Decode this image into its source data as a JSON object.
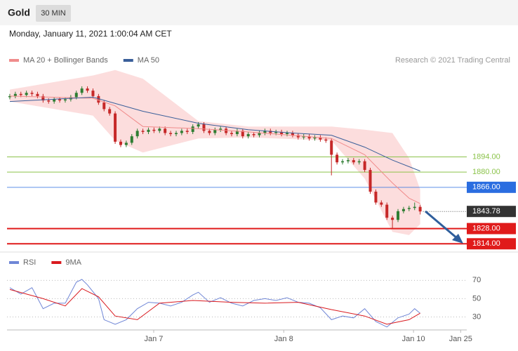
{
  "header": {
    "title": "Gold",
    "interval": "30 MIN",
    "datetime": "Monday, January 11, 2021 1:00:04 AM CET"
  },
  "chart_data": [
    {
      "type": "candlestick",
      "attribution": "Research © 2021 Trading Central",
      "xlim": [
        -0.5,
        82.4
      ],
      "ylim": [
        1809,
        1990
      ],
      "up_color": "#2e7d32",
      "down_color": "#c62828",
      "band_color": "#fbd5d5",
      "open": [
        1949,
        1950,
        1952,
        1951,
        1953,
        1952,
        1950,
        1946,
        1945,
        1947,
        1946,
        1947,
        1949,
        1953,
        1957,
        1955,
        1950,
        1944,
        1938,
        1934,
        1908,
        1905,
        1907,
        1913,
        1918,
        1917,
        1919,
        1918,
        1920,
        1916,
        1915,
        1916,
        1918,
        1917,
        1922,
        1924,
        1918,
        1916,
        1919,
        1920,
        1916,
        1915,
        1918,
        1913,
        1915,
        1914,
        1916,
        1918,
        1916,
        1917,
        1915,
        1916,
        1914,
        1912,
        1913,
        1911,
        1912,
        1910,
        1909,
        1896,
        1889,
        1890,
        1891,
        1889,
        1890,
        1882,
        1862,
        1852,
        1850,
        1838,
        1836,
        1844,
        1846,
        1847,
        1848
      ],
      "high": [
        1952,
        1954,
        1954,
        1955,
        1955,
        1954,
        1952,
        1948,
        1949,
        1949,
        1949,
        1951,
        1955,
        1959,
        1959,
        1957,
        1952,
        1946,
        1940,
        1936,
        1910,
        1909,
        1915,
        1920,
        1920,
        1921,
        1921,
        1922,
        1922,
        1918,
        1918,
        1920,
        1920,
        1924,
        1926,
        1926,
        1920,
        1921,
        1922,
        1922,
        1918,
        1920,
        1920,
        1917,
        1917,
        1918,
        1920,
        1920,
        1919,
        1919,
        1918,
        1918,
        1916,
        1915,
        1915,
        1914,
        1914,
        1912,
        1911,
        1898,
        1892,
        1893,
        1893,
        1892,
        1892,
        1884,
        1864,
        1854,
        1852,
        1840,
        1846,
        1848,
        1849,
        1852,
        1850
      ],
      "low": [
        1947,
        1948,
        1949,
        1949,
        1950,
        1948,
        1944,
        1943,
        1943,
        1944,
        1944,
        1945,
        1947,
        1951,
        1953,
        1948,
        1942,
        1936,
        1932,
        1906,
        1903,
        1903,
        1905,
        1911,
        1915,
        1915,
        1916,
        1916,
        1914,
        1913,
        1913,
        1914,
        1915,
        1915,
        1920,
        1916,
        1914,
        1914,
        1917,
        1914,
        1913,
        1913,
        1911,
        1911,
        1912,
        1912,
        1914,
        1914,
        1914,
        1913,
        1913,
        1912,
        1910,
        1910,
        1909,
        1909,
        1908,
        1907,
        1877,
        1887,
        1887,
        1888,
        1887,
        1887,
        1880,
        1860,
        1850,
        1848,
        1836,
        1828,
        1834,
        1842,
        1844,
        1845,
        1841
      ],
      "close": [
        1950,
        1952,
        1951,
        1953,
        1952,
        1950,
        1946,
        1945,
        1947,
        1946,
        1947,
        1949,
        1953,
        1957,
        1955,
        1950,
        1944,
        1938,
        1934,
        1908,
        1905,
        1907,
        1913,
        1918,
        1917,
        1919,
        1918,
        1920,
        1916,
        1915,
        1916,
        1918,
        1917,
        1922,
        1924,
        1918,
        1916,
        1919,
        1920,
        1916,
        1915,
        1918,
        1913,
        1915,
        1914,
        1916,
        1918,
        1916,
        1917,
        1915,
        1916,
        1914,
        1912,
        1913,
        1911,
        1912,
        1910,
        1909,
        1896,
        1889,
        1890,
        1891,
        1889,
        1890,
        1882,
        1862,
        1852,
        1850,
        1838,
        1836,
        1844,
        1846,
        1847,
        1848,
        1843.78
      ],
      "last_price": 1843.78,
      "series": [
        {
          "name": "MA 20 + Bollinger Bands",
          "color": "#f08c8c",
          "x": [
            0,
            15,
            19,
            24,
            34,
            43,
            58,
            64,
            69,
            72,
            74
          ],
          "values": [
            1950,
            1948,
            1941,
            1922,
            1920,
            1917,
            1911,
            1896,
            1870,
            1856,
            1851
          ],
          "upper": [
            1956,
            1969,
            1974,
            1966,
            1927,
            1922,
            1922,
            1919,
            1916,
            1893,
            1864
          ],
          "lower": [
            1945,
            1932,
            1909,
            1898,
            1911,
            1912,
            1909,
            1874,
            1825,
            1822,
            1832
          ]
        },
        {
          "name": "MA 50",
          "color": "#3a5f9a",
          "x": [
            0,
            15,
            24,
            34,
            43,
            51,
            58,
            64,
            69,
            74
          ],
          "values": [
            1945,
            1949,
            1936,
            1925,
            1919,
            1916,
            1914,
            1903,
            1891,
            1881
          ]
        }
      ],
      "levels": [
        {
          "value": 1894,
          "label": "1894.00",
          "color": "#8bc34a",
          "label_style": "text"
        },
        {
          "value": 1880,
          "label": "1880.00",
          "color": "#8bc34a",
          "label_style": "text"
        },
        {
          "value": 1866,
          "label": "1866.00",
          "color": "#2a6de0",
          "label_style": "box"
        },
        {
          "value": 1828,
          "label": "1828.00",
          "color": "#e01b1b",
          "label_style": "box"
        },
        {
          "value": 1814,
          "label": "1814.00",
          "color": "#e01b1b",
          "label_style": "box"
        }
      ]
    },
    {
      "type": "line",
      "xlim": [
        -0.5,
        82.4
      ],
      "ylim": [
        15,
        81
      ],
      "yticks": [
        70,
        50,
        30
      ],
      "xticks": [
        {
          "value": 25.95,
          "label": "Jan 7"
        },
        {
          "value": 49.4,
          "label": "Jan 8"
        },
        {
          "value": 72.8,
          "label": "Jan 10"
        },
        {
          "value": 81.3,
          "label": "Jan 25"
        }
      ],
      "series": [
        {
          "name": "RSI",
          "color": "#6f86d6",
          "x": [
            0,
            2,
            4,
            6,
            8,
            10,
            12,
            13,
            14,
            16,
            17,
            19,
            21,
            23,
            25,
            27,
            29,
            31,
            33,
            34,
            36,
            38,
            40,
            42,
            44,
            46,
            48,
            50,
            52,
            54,
            56,
            58,
            60,
            62,
            64,
            66,
            68,
            70,
            72,
            73,
            74
          ],
          "values": [
            62,
            55,
            62,
            39,
            45,
            45,
            68,
            71,
            65,
            50,
            27,
            22,
            27,
            39,
            46,
            45,
            42,
            46,
            54,
            57,
            46,
            51,
            45,
            42,
            48,
            50,
            48,
            51,
            46,
            45,
            40,
            27,
            31,
            29,
            39,
            25,
            19,
            29,
            33,
            39,
            34
          ]
        },
        {
          "name": "9MA",
          "color": "#d9191e",
          "x": [
            0,
            6,
            10,
            13,
            16,
            19,
            23,
            27,
            33,
            40,
            46,
            52,
            58,
            64,
            68,
            72,
            74
          ],
          "values": [
            60,
            50,
            42,
            61,
            52,
            31,
            27,
            45,
            48,
            46,
            45,
            46,
            38,
            31,
            22,
            27,
            34
          ]
        }
      ]
    }
  ]
}
